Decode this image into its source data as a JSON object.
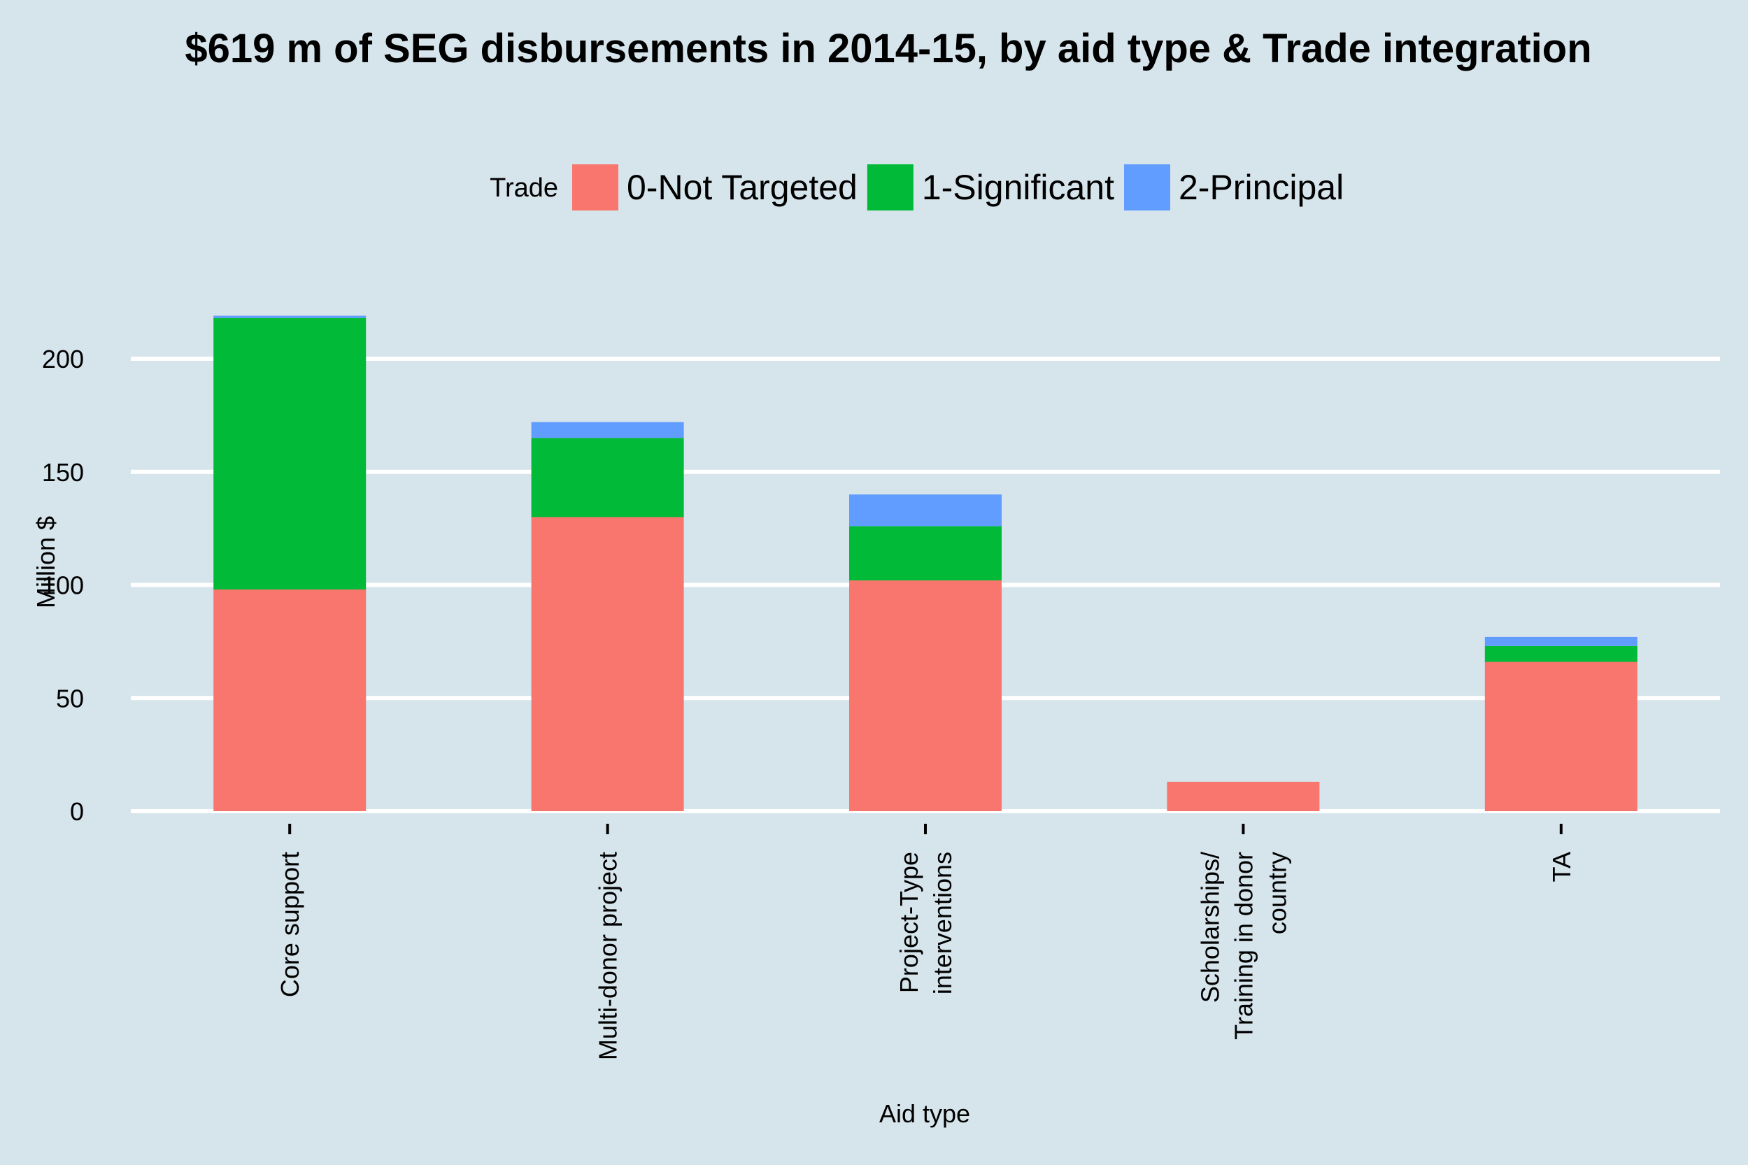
{
  "chart_data": {
    "type": "bar",
    "stacked": true,
    "title": "$619 m of SEG disbursements in 2014-15, by aid type & Trade integration",
    "xlabel": "Aid type",
    "ylabel": "Million $",
    "ylim": [
      0,
      225
    ],
    "yticks": [
      0,
      50,
      100,
      150,
      200
    ],
    "grid": true,
    "legend_position": "top",
    "legend_title": "Trade",
    "categories": [
      [
        "Core support"
      ],
      [
        "Multi-donor project"
      ],
      [
        "Project-Type",
        "interventions"
      ],
      [
        "Scholarships/",
        "Training in donor",
        "country"
      ],
      [
        "TA"
      ]
    ],
    "series": [
      {
        "name": "0-Not Targeted",
        "color": "#f8766d",
        "values": [
          98,
          130,
          102,
          13,
          66
        ]
      },
      {
        "name": "1-Significant",
        "color": "#00ba38",
        "values": [
          120,
          35,
          24,
          0,
          7
        ]
      },
      {
        "name": "2-Principal",
        "color": "#619cff",
        "values": [
          1,
          7,
          14,
          0,
          4
        ]
      }
    ]
  },
  "colors": {
    "background": "#d6e4eb",
    "gridline": "#ffffff"
  }
}
